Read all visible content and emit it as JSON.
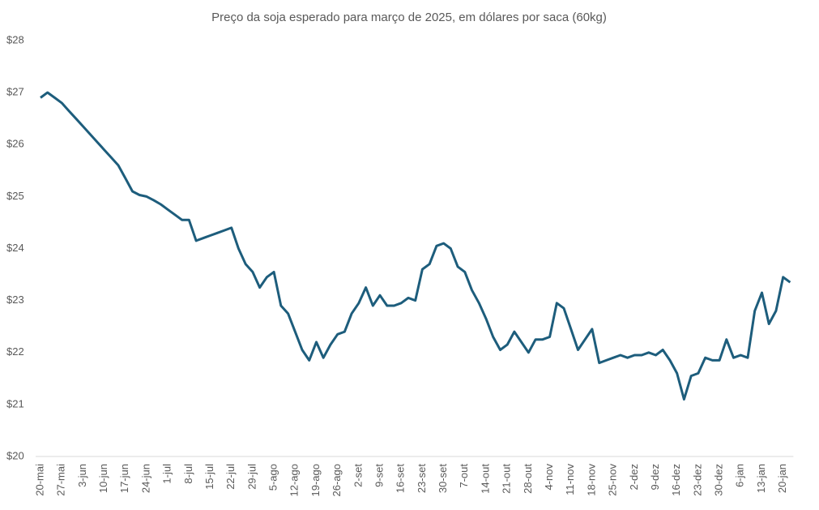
{
  "chart_data": {
    "type": "line",
    "title": "Preço da soja  esperado para março de 2025, em dólares por saca (60kg)",
    "categories": [
      "20-mai",
      null,
      null,
      "27-mai",
      null,
      null,
      "3-jun",
      null,
      null,
      "10-jun",
      null,
      null,
      "17-jun",
      null,
      null,
      "24-jun",
      null,
      null,
      "1-jul",
      null,
      null,
      "8-jul",
      null,
      null,
      "15-jul",
      null,
      null,
      "22-jul",
      null,
      null,
      "29-jul",
      null,
      null,
      "5-ago",
      null,
      null,
      "12-ago",
      null,
      null,
      "19-ago",
      null,
      null,
      "26-ago",
      null,
      null,
      "2-set",
      null,
      null,
      "9-set",
      null,
      null,
      "16-set",
      null,
      null,
      "23-set",
      null,
      null,
      "30-set",
      null,
      null,
      "7-out",
      null,
      null,
      "14-out",
      null,
      null,
      "21-out",
      null,
      null,
      "28-out",
      null,
      null,
      "4-nov",
      null,
      null,
      "11-nov",
      null,
      null,
      "18-nov",
      null,
      null,
      "25-nov",
      null,
      null,
      "2-dez",
      null,
      null,
      "9-dez",
      null,
      null,
      "16-dez",
      null,
      null,
      "23-dez",
      null,
      null,
      "30-dez",
      null,
      null,
      "6-jan",
      null,
      null,
      "13-jan",
      null,
      null,
      "20-jan",
      null
    ],
    "values": [
      26.9,
      27.0,
      26.9,
      26.8,
      26.65,
      26.5,
      26.35,
      26.2,
      26.05,
      25.9,
      25.75,
      25.6,
      25.35,
      25.1,
      25.03,
      25.0,
      24.93,
      24.85,
      24.75,
      24.65,
      24.55,
      24.55,
      24.15,
      24.2,
      24.25,
      24.3,
      24.35,
      24.4,
      24.0,
      23.7,
      23.55,
      23.25,
      23.45,
      23.55,
      22.9,
      22.75,
      22.4,
      22.05,
      21.85,
      22.2,
      21.9,
      22.15,
      22.35,
      22.4,
      22.75,
      22.95,
      23.25,
      22.9,
      23.1,
      22.9,
      22.9,
      22.95,
      23.05,
      23.0,
      23.6,
      23.7,
      24.05,
      24.1,
      24.0,
      23.65,
      23.55,
      23.2,
      22.95,
      22.65,
      22.3,
      22.05,
      22.15,
      22.4,
      22.2,
      22.0,
      22.25,
      22.25,
      22.3,
      22.95,
      22.85,
      22.45,
      22.05,
      22.25,
      22.45,
      21.8,
      21.85,
      21.9,
      21.95,
      21.9,
      21.95,
      21.95,
      22.0,
      21.95,
      22.05,
      21.85,
      21.6,
      21.1,
      21.55,
      21.6,
      21.9,
      21.85,
      21.85,
      22.25,
      21.9,
      21.95,
      21.9,
      22.8,
      23.15,
      22.55,
      22.8,
      23.45,
      23.35
    ],
    "color": "#1d5d7c",
    "ylim": [
      20,
      28
    ],
    "yticks": [
      {
        "value": 20,
        "label": "$20"
      },
      {
        "value": 21,
        "label": "$21"
      },
      {
        "value": 22,
        "label": "$22"
      },
      {
        "value": 23,
        "label": "$23"
      },
      {
        "value": 24,
        "label": "$24"
      },
      {
        "value": 25,
        "label": "$25"
      },
      {
        "value": 26,
        "label": "$26"
      },
      {
        "value": 27,
        "label": "$27"
      },
      {
        "value": 28,
        "label": "$28"
      }
    ],
    "grid": false
  }
}
